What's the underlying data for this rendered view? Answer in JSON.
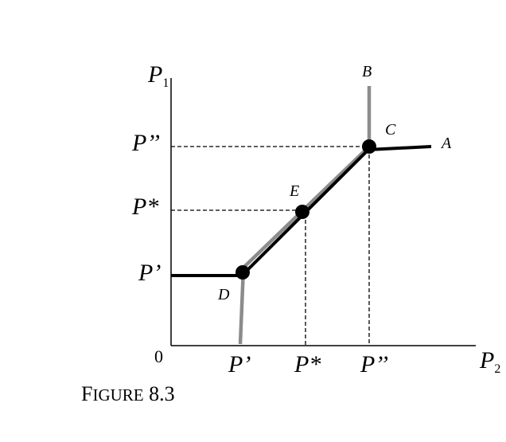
{
  "axes": {
    "y_label_main": "P",
    "y_label_sub": "1",
    "x_label_main": "P",
    "x_label_sub": "2",
    "origin": "0"
  },
  "y_ticks": [
    "P’’",
    "P*",
    "P’"
  ],
  "x_ticks": [
    "P’",
    "P*",
    "P’’"
  ],
  "points": {
    "A": "A",
    "B": "B",
    "C": "C",
    "D": "D",
    "E": "E"
  },
  "caption": {
    "first_letter": "F",
    "rest": "IGURE",
    "number": "8.3"
  },
  "colors": {
    "black_curve": "#000000",
    "gray_curve": "#8c8c8c",
    "dashed": "#000000"
  }
}
